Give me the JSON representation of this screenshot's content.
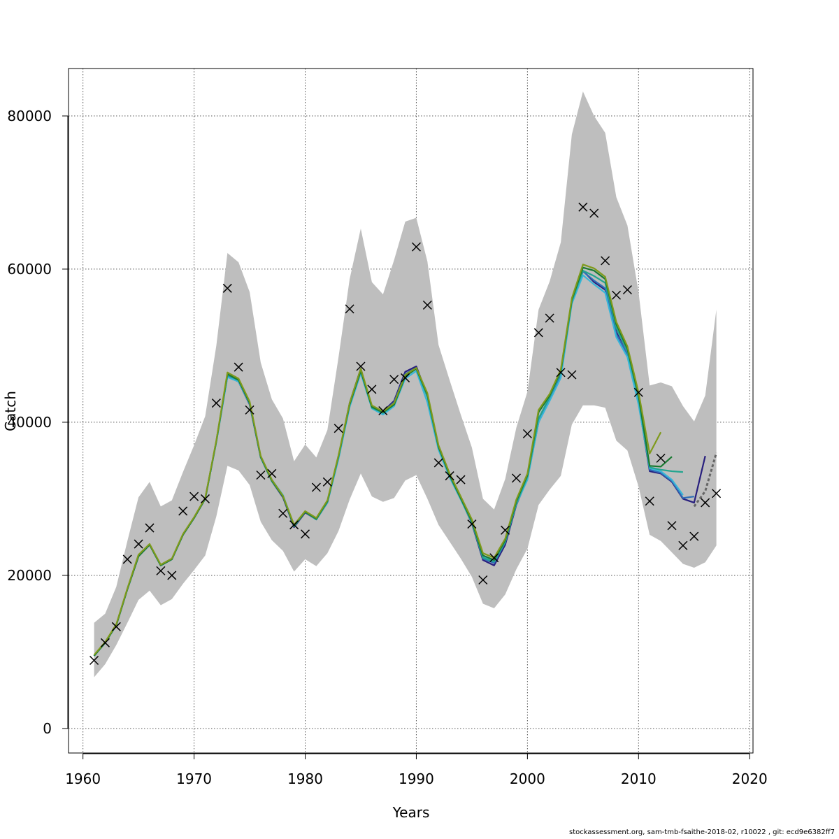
{
  "chart_data": {
    "type": "line",
    "xlabel": "Years",
    "ylabel": "Catch",
    "xlim": [
      1958.7,
      2020.3
    ],
    "ylim": [
      -3200,
      86200
    ],
    "xticks": [
      1960,
      1970,
      1980,
      1990,
      2000,
      2010,
      2020
    ],
    "yticks": [
      0,
      20000,
      40000,
      60000,
      80000
    ],
    "grid": true,
    "band_color": "#bebebe",
    "band": {
      "x": [
        1961,
        1962,
        1963,
        1964,
        1965,
        1966,
        1967,
        1968,
        1969,
        1970,
        1971,
        1972,
        1973,
        1974,
        1975,
        1976,
        1977,
        1978,
        1979,
        1980,
        1981,
        1982,
        1983,
        1984,
        1985,
        1986,
        1987,
        1988,
        1989,
        1990,
        1991,
        1992,
        1993,
        1994,
        1995,
        1996,
        1997,
        1998,
        1999,
        2000,
        2001,
        2002,
        2003,
        2004,
        2005,
        2006,
        2007,
        2008,
        2009,
        2010,
        2011,
        2012,
        2013,
        2014,
        2015,
        2016,
        2017
      ],
      "upper": [
        13800,
        15000,
        18500,
        24500,
        30200,
        32200,
        29000,
        29800,
        33500,
        37000,
        40800,
        50000,
        62100,
        60900,
        57000,
        47800,
        43000,
        40500,
        34900,
        37100,
        35400,
        39000,
        48500,
        58700,
        65300,
        58300,
        56700,
        61200,
        66200,
        66700,
        61000,
        50100,
        45500,
        41000,
        36700,
        30000,
        28600,
        32600,
        39300,
        44000,
        54700,
        58400,
        63500,
        77600,
        83200,
        80000,
        77800,
        69400,
        65700,
        57000,
        44800,
        45200,
        44700,
        42100,
        40100,
        43500,
        54700
      ],
      "lower": [
        6700,
        8400,
        10900,
        13800,
        16800,
        18000,
        16100,
        16900,
        18900,
        20700,
        22600,
        27700,
        34300,
        33700,
        31800,
        27000,
        24600,
        23200,
        20500,
        22100,
        21200,
        22900,
        25800,
        29900,
        33300,
        30300,
        29600,
        30100,
        32400,
        33100,
        30000,
        26600,
        24400,
        22200,
        19800,
        16300,
        15700,
        17500,
        20800,
        23500,
        29200,
        31200,
        33000,
        39700,
        42200,
        42200,
        41900,
        37600,
        36300,
        31600,
        25300,
        24500,
        23000,
        21500,
        21000,
        21700,
        23900
      ]
    },
    "series": [
      {
        "color": "#281f7e",
        "x": [
          1961,
          1962,
          1963,
          1964,
          1965,
          1966,
          1967,
          1968,
          1969,
          1970,
          1971,
          1972,
          1973,
          1974,
          1975,
          1976,
          1977,
          1978,
          1979,
          1980,
          1981,
          1982,
          1983,
          1984,
          1985,
          1986,
          1987,
          1988,
          1989,
          1990,
          1991,
          1992,
          1993,
          1994,
          1995,
          1996,
          1997,
          1998,
          1999,
          2000,
          2001,
          2002,
          2003,
          2004,
          2005,
          2006,
          2007,
          2008,
          2009,
          2010,
          2011,
          2012,
          2013,
          2014,
          2015,
          2016
        ],
        "values": [
          9500,
          11200,
          13500,
          18200,
          22500,
          24000,
          21300,
          22100,
          25300,
          27500,
          30000,
          37500,
          46000,
          45300,
          42300,
          35400,
          32300,
          30200,
          26300,
          28200,
          27300,
          29500,
          35500,
          42500,
          47000,
          42000,
          41400,
          42800,
          46600,
          47300,
          43500,
          36800,
          33000,
          30000,
          26800,
          22000,
          21300,
          24000,
          29200,
          32700,
          40000,
          43000,
          46200,
          55900,
          59800,
          58300,
          57300,
          51800,
          48800,
          42600,
          33600,
          33300,
          32200,
          30000,
          29500,
          35600
        ]
      },
      {
        "color": "#2f6fb8",
        "x": [
          1961,
          1962,
          1963,
          1964,
          1965,
          1966,
          1967,
          1968,
          1969,
          1970,
          1971,
          1972,
          1973,
          1974,
          1975,
          1976,
          1977,
          1978,
          1979,
          1980,
          1981,
          1982,
          1983,
          1984,
          1985,
          1986,
          1987,
          1988,
          1989,
          1990,
          1991,
          1992,
          1993,
          1994,
          1995,
          1996,
          1997,
          1998,
          1999,
          2000,
          2001,
          2002,
          2003,
          2004,
          2005,
          2006,
          2007,
          2008,
          2009,
          2010,
          2011,
          2012,
          2013,
          2014,
          2015
        ],
        "values": [
          9500,
          11200,
          13500,
          18200,
          22500,
          24000,
          21300,
          22100,
          25300,
          27500,
          30000,
          37500,
          46100,
          45400,
          42400,
          35400,
          32400,
          30300,
          26400,
          28300,
          27300,
          29600,
          35500,
          42400,
          46900,
          42000,
          41300,
          42600,
          46300,
          47100,
          43400,
          36800,
          33000,
          30000,
          26900,
          22200,
          21600,
          24300,
          29400,
          32800,
          40200,
          43100,
          46300,
          55800,
          59700,
          58500,
          57500,
          51500,
          48900,
          42800,
          33800,
          33400,
          32300,
          30100,
          30300
        ]
      },
      {
        "color": "#38b6d8",
        "x": [
          1961,
          1962,
          1963,
          1964,
          1965,
          1966,
          1967,
          1968,
          1969,
          1970,
          1971,
          1972,
          1973,
          1974,
          1975,
          1976,
          1977,
          1978,
          1979,
          1980,
          1981,
          1982,
          1983,
          1984,
          1985,
          1986,
          1987,
          1988,
          1989,
          1990,
          1991,
          1992,
          1993,
          1994,
          1995,
          1996,
          1997,
          1998,
          1999,
          2000,
          2001,
          2002,
          2003,
          2004,
          2005,
          2006,
          2007,
          2008,
          2009,
          2010,
          2011,
          2012,
          2013,
          2014
        ],
        "values": [
          9500,
          11200,
          13500,
          18200,
          22500,
          24000,
          21300,
          22100,
          25300,
          27500,
          30000,
          37400,
          45900,
          45300,
          42400,
          35500,
          32500,
          30500,
          26500,
          28300,
          27300,
          29500,
          35200,
          42000,
          46400,
          41800,
          41000,
          42100,
          45700,
          46700,
          42600,
          36400,
          32800,
          29900,
          26900,
          22500,
          21900,
          24500,
          29300,
          32500,
          40000,
          42800,
          45800,
          55500,
          59200,
          58000,
          56900,
          51100,
          48500,
          42300,
          34000,
          33600,
          32500,
          30500
        ]
      },
      {
        "color": "#23a58f",
        "x": [
          1961,
          1962,
          1963,
          1964,
          1965,
          1966,
          1967,
          1968,
          1969,
          1970,
          1971,
          1972,
          1973,
          1974,
          1975,
          1976,
          1977,
          1978,
          1979,
          1980,
          1981,
          1982,
          1983,
          1984,
          1985,
          1986,
          1987,
          1988,
          1989,
          1990,
          1991,
          1992,
          1993,
          1994,
          1995,
          1996,
          1997,
          1998,
          1999,
          2000,
          2001,
          2002,
          2003,
          2004,
          2005,
          2006,
          2007,
          2008,
          2009,
          2010,
          2011,
          2012,
          2013,
          2014
        ],
        "values": [
          9500,
          11200,
          13500,
          18200,
          22500,
          24000,
          21300,
          22100,
          25300,
          27500,
          30000,
          37500,
          46200,
          45500,
          42500,
          35400,
          32300,
          30300,
          26400,
          28300,
          27300,
          29600,
          35500,
          42300,
          46800,
          41900,
          41200,
          42300,
          46000,
          47000,
          43300,
          36700,
          33000,
          30000,
          26900,
          22300,
          21800,
          24400,
          29400,
          32900,
          40500,
          43300,
          46500,
          55800,
          59800,
          59100,
          58200,
          52300,
          49300,
          43200,
          34100,
          33800,
          33600,
          33500
        ]
      },
      {
        "color": "#1a7a32",
        "x": [
          1961,
          1962,
          1963,
          1964,
          1965,
          1966,
          1967,
          1968,
          1969,
          1970,
          1971,
          1972,
          1973,
          1974,
          1975,
          1976,
          1977,
          1978,
          1979,
          1980,
          1981,
          1982,
          1983,
          1984,
          1985,
          1986,
          1987,
          1988,
          1989,
          1990,
          1991,
          1992,
          1993,
          1994,
          1995,
          1996,
          1997,
          1998,
          1999,
          2000,
          2001,
          2002,
          2003,
          2004,
          2005,
          2006,
          2007,
          2008,
          2009,
          2010,
          2011,
          2012,
          2013
        ],
        "values": [
          9500,
          11200,
          13500,
          18200,
          22500,
          24000,
          21300,
          22100,
          25300,
          27500,
          30000,
          37500,
          46300,
          45500,
          42500,
          35500,
          32400,
          30300,
          26500,
          28300,
          27400,
          29700,
          35600,
          42300,
          46700,
          42000,
          41300,
          42300,
          46000,
          47000,
          43600,
          36800,
          33100,
          30100,
          27100,
          22600,
          22000,
          24600,
          29700,
          33100,
          41300,
          43500,
          46700,
          56000,
          60200,
          59800,
          58700,
          52800,
          49600,
          43500,
          34300,
          34200,
          35500
        ]
      },
      {
        "color": "#7f9a1c",
        "x": [
          1961,
          1962,
          1963,
          1964,
          1965,
          1966,
          1967,
          1968,
          1969,
          1970,
          1971,
          1972,
          1973,
          1974,
          1975,
          1976,
          1977,
          1978,
          1979,
          1980,
          1981,
          1982,
          1983,
          1984,
          1985,
          1986,
          1987,
          1988,
          1989,
          1990,
          1991,
          1992,
          1993,
          1994,
          1995,
          1996,
          1997,
          1998,
          1999,
          2000,
          2001,
          2002,
          2003,
          2004,
          2005,
          2006,
          2007,
          2008,
          2009,
          2010,
          2011,
          2012
        ],
        "values": [
          9600,
          11300,
          13600,
          18300,
          22700,
          24100,
          21400,
          22200,
          25400,
          27600,
          30100,
          37600,
          46500,
          45700,
          42700,
          35600,
          32500,
          30400,
          26600,
          28400,
          27500,
          29800,
          35700,
          42500,
          47000,
          42200,
          41400,
          42500,
          46200,
          47100,
          43800,
          37000,
          33300,
          30300,
          27300,
          22900,
          22300,
          24800,
          29900,
          33300,
          41600,
          43700,
          46900,
          56200,
          60600,
          60100,
          59000,
          53100,
          49900,
          43900,
          35900,
          38700
        ]
      },
      {
        "color": "#666666",
        "dashed": true,
        "x": [
          2015,
          2016,
          2017
        ],
        "values": [
          29000,
          31000,
          36000
        ]
      }
    ],
    "observed": {
      "marker": "x",
      "x": [
        1961,
        1962,
        1963,
        1964,
        1965,
        1966,
        1967,
        1968,
        1969,
        1970,
        1971,
        1972,
        1973,
        1974,
        1975,
        1976,
        1977,
        1978,
        1979,
        1980,
        1981,
        1982,
        1983,
        1984,
        1985,
        1986,
        1987,
        1988,
        1989,
        1990,
        1991,
        1992,
        1993,
        1994,
        1995,
        1996,
        1997,
        1998,
        1999,
        2000,
        2001,
        2002,
        2003,
        2004,
        2005,
        2006,
        2007,
        2008,
        2009,
        2010,
        2011,
        2012,
        2013,
        2014,
        2015,
        2016,
        2017
      ],
      "values": [
        8900,
        11200,
        13300,
        22100,
        24100,
        26200,
        20600,
        20000,
        28400,
        30300,
        30000,
        42500,
        57500,
        47200,
        41600,
        33100,
        33300,
        28100,
        26600,
        25400,
        31500,
        32200,
        39200,
        54800,
        47300,
        44300,
        41500,
        45600,
        45800,
        62900,
        55300,
        34700,
        33000,
        32500,
        26700,
        19400,
        22300,
        25900,
        32700,
        38500,
        51700,
        53600,
        46500,
        46200,
        68100,
        67300,
        61100,
        56600,
        57300,
        43900,
        29700,
        35300,
        26500,
        23900,
        25100,
        29500,
        30700
      ]
    }
  },
  "footer": {
    "text": "stockassessment.org, sam-tmb-fsaithe-2018-02, r10022 , git: ecd9e6382ff7"
  }
}
